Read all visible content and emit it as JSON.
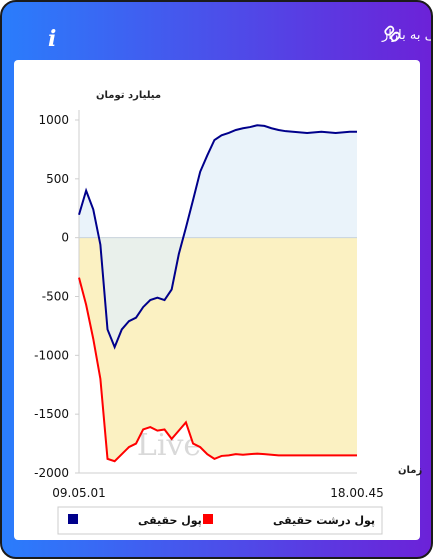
{
  "header": {
    "info": "i"
  },
  "chart_data": {
    "type": "area-line",
    "title": "برآیند ورود و خروج پول حقیقی و پول درشت حقیقی به بازار",
    "y_label": "میلیارد تومان",
    "x_label": "زمان",
    "watermark": "LiveTSE.ir",
    "categories": [
      "09.05.01",
      null,
      null,
      null,
      null,
      null,
      null,
      null,
      null,
      null,
      null,
      null,
      null,
      null,
      null,
      null,
      null,
      null,
      null,
      null,
      null,
      null,
      null,
      null,
      null,
      null,
      null,
      null,
      null,
      null,
      null,
      null,
      null,
      null,
      null,
      null,
      null,
      null,
      null,
      "18.00.45"
    ],
    "series": [
      {
        "name": "پول حقیقی",
        "color": "#00008b",
        "fill": "#e3eff8",
        "values": [
          195,
          400,
          240,
          -60,
          -780,
          -930,
          -780,
          -710,
          -680,
          -590,
          -530,
          -510,
          -530,
          -440,
          -140,
          85,
          320,
          560,
          700,
          830,
          870,
          890,
          915,
          930,
          940,
          955,
          950,
          930,
          915,
          905,
          900,
          895,
          890,
          895,
          900,
          895,
          890,
          895,
          900,
          900
        ]
      },
      {
        "name": "پول درشت حقیقی",
        "color": "#ff0000",
        "fill": "#fbf1c2",
        "values": [
          -340,
          -570,
          -860,
          -1200,
          -1880,
          -1900,
          -1840,
          -1780,
          -1750,
          -1630,
          -1610,
          -1640,
          -1630,
          -1710,
          -1640,
          -1570,
          -1750,
          -1780,
          -1840,
          -1880,
          -1855,
          -1850,
          -1840,
          -1845,
          -1840,
          -1835,
          -1840,
          -1845,
          -1850,
          -1850,
          -1850,
          -1850,
          -1850,
          -1850,
          -1850,
          -1850,
          -1850,
          -1850,
          -1850,
          -1850
        ]
      }
    ],
    "ylim": [
      -2000,
      1000
    ],
    "yticks": [
      -2000,
      -1500,
      -1000,
      -500,
      0,
      500,
      1000
    ],
    "legend": "bottom"
  }
}
